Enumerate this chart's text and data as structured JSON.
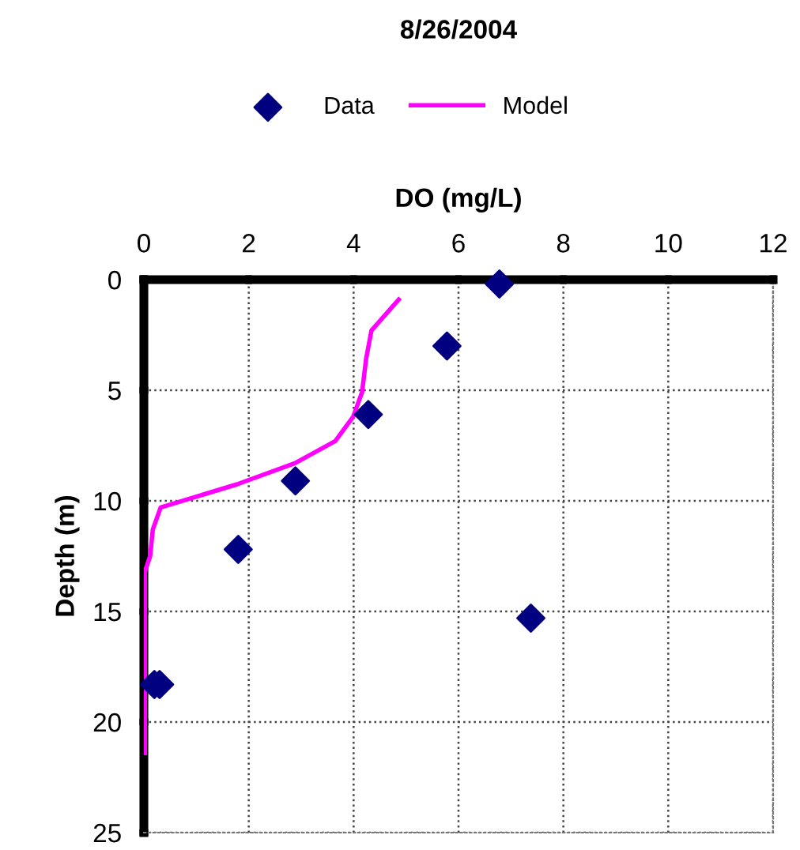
{
  "chart_data": {
    "type": "scatter",
    "title": "8/26/2004",
    "xlabel": "DO (mg/L)",
    "ylabel": "Depth (m)",
    "xlim": [
      0,
      12
    ],
    "xticks": [
      0,
      2,
      4,
      6,
      8,
      10,
      12
    ],
    "ylim": [
      25,
      0
    ],
    "yticks": [
      0,
      5,
      10,
      15,
      20,
      25
    ],
    "grid": true,
    "legend": "top",
    "series": [
      {
        "name": "Data",
        "color": "#000080",
        "marker": "diamond",
        "x": [
          6.78,
          5.78,
          4.28,
          2.89,
          1.8,
          7.38,
          0.2,
          0.3
        ],
        "values": [
          0.2,
          3.0,
          6.1,
          9.1,
          12.2,
          15.3,
          18.3,
          18.3
        ]
      },
      {
        "name": "Model",
        "type": "line",
        "color": "#ff00ff",
        "marker": "none",
        "x": [
          4.86,
          4.34,
          4.24,
          4.16,
          3.99,
          3.65,
          2.88,
          1.78,
          0.32,
          0.17,
          0.12,
          0.02,
          0.02
        ],
        "values": [
          0.9,
          2.3,
          3.55,
          5.1,
          6.2,
          7.3,
          8.3,
          9.25,
          10.3,
          11.3,
          12.5,
          13.2,
          21.4
        ]
      }
    ]
  }
}
